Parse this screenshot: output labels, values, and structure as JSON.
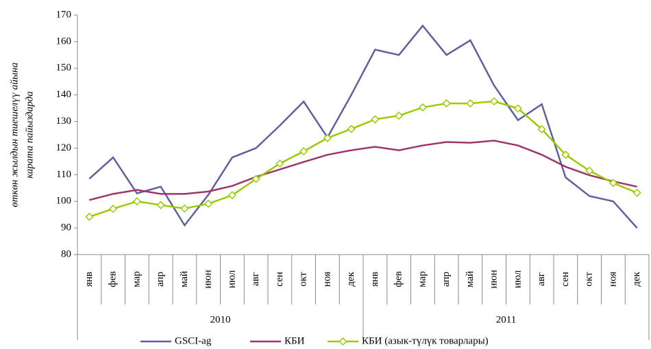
{
  "chart_data": {
    "type": "line",
    "y_label": [
      "өткөн жылдын тиешелүү айына",
      "карата пайыздарда"
    ],
    "categories": [
      "янв",
      "фев",
      "мар",
      "апр",
      "май",
      "июн",
      "июл",
      "авг",
      "сен",
      "окт",
      "ноя",
      "дек",
      "янв",
      "фев",
      "мар",
      "апр",
      "май",
      "июн",
      "июл",
      "авг",
      "сен",
      "окт",
      "ноя",
      "дек"
    ],
    "category_groups": [
      "2010",
      "2011"
    ],
    "series": [
      {
        "name": "GSCI-ag",
        "color": "#5f5f9f",
        "marker": "none",
        "values": [
          108.5,
          116.5,
          103,
          105.5,
          91,
          102.5,
          116.5,
          120,
          128.5,
          137.5,
          124,
          140,
          157,
          155,
          166,
          155,
          160.5,
          143.5,
          130.5,
          136.5,
          109,
          102,
          100,
          90
        ]
      },
      {
        "name": "КБИ",
        "color": "#9e3468",
        "marker": "none",
        "values": [
          100.5,
          102.8,
          104.3,
          102.8,
          102.8,
          103.7,
          105.8,
          109.2,
          112,
          114.8,
          117.5,
          119.2,
          120.5,
          119.2,
          121,
          122.3,
          122,
          122.8,
          121,
          117.5,
          113,
          109.8,
          107.5,
          105.5
        ]
      },
      {
        "name": "КБИ (азык-түлүк товарлары)",
        "color": "#99cc00",
        "marker": "diamond",
        "values": [
          94.2,
          97.2,
          100,
          98.6,
          97.3,
          99.1,
          102.3,
          108.4,
          114.2,
          118.8,
          123.8,
          127.2,
          130.8,
          132.2,
          135.3,
          136.8,
          136.8,
          137.6,
          134.9,
          127.1,
          117.5,
          111.5,
          106.9,
          103.2
        ]
      }
    ],
    "ylim": [
      80,
      170
    ],
    "yticks": [
      80,
      90,
      100,
      110,
      120,
      130,
      140,
      150,
      160,
      170
    ],
    "grid": false,
    "legend": "bottom"
  }
}
